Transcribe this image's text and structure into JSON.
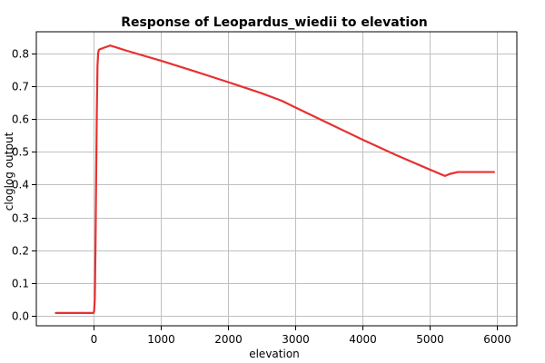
{
  "chart_data": {
    "type": "line",
    "title": "Response of Leopardus_wiedii to elevation",
    "xlabel": "elevation",
    "ylabel": "cloglog output",
    "xlim": [
      -850,
      6300
    ],
    "ylim": [
      -0.03,
      0.865
    ],
    "x_ticks": [
      0,
      1000,
      2000,
      3000,
      4000,
      5000,
      6000
    ],
    "y_ticks": [
      0.0,
      0.1,
      0.2,
      0.3,
      0.4,
      0.5,
      0.6,
      0.7,
      0.8
    ],
    "y_tick_labels": [
      "0.0",
      "0.1",
      "0.2",
      "0.3",
      "0.4",
      "0.5",
      "0.6",
      "0.7",
      "0.8"
    ],
    "grid": true,
    "series": [
      {
        "color": "#e83030",
        "x": [
          -560,
          -300,
          0,
          10,
          20,
          30,
          40,
          50,
          60,
          70,
          80,
          100,
          150,
          250,
          500,
          1000,
          1500,
          2000,
          2500,
          2800,
          3000,
          3500,
          4000,
          4500,
          5000,
          5230,
          5300,
          5420,
          5500,
          5960
        ],
        "y": [
          0.009,
          0.009,
          0.009,
          0.015,
          0.05,
          0.2,
          0.42,
          0.62,
          0.76,
          0.8,
          0.81,
          0.812,
          0.816,
          0.823,
          0.807,
          0.777,
          0.745,
          0.712,
          0.678,
          0.655,
          0.635,
          0.586,
          0.537,
          0.49,
          0.446,
          0.426,
          0.432,
          0.438,
          0.438,
          0.438
        ]
      }
    ]
  }
}
